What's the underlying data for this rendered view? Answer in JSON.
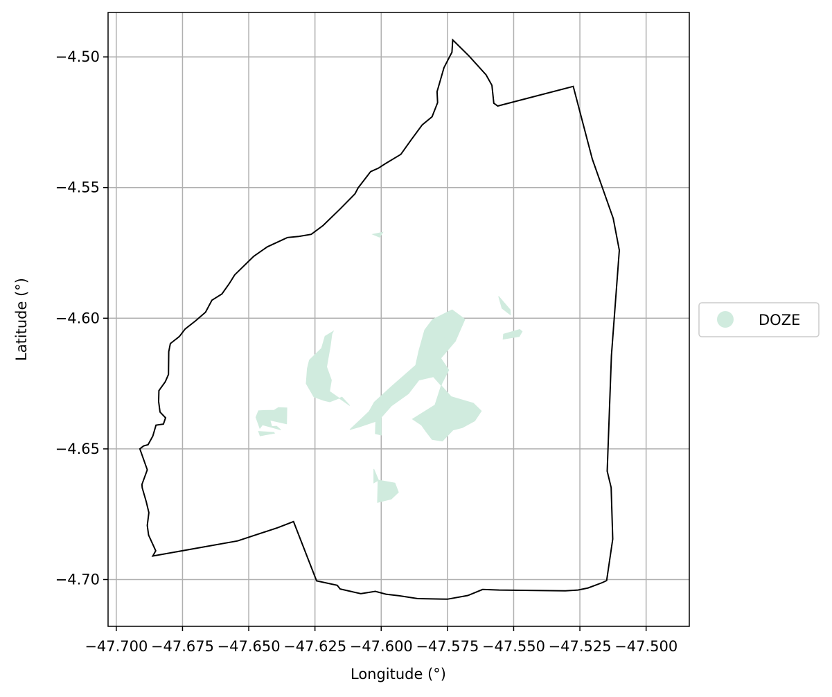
{
  "chart_data": {
    "type": "map",
    "xlabel": "Longitude (°)",
    "ylabel": "Latitude (°)",
    "xlim": [
      -47.7031,
      -47.4837
    ],
    "ylim": [
      -4.7179,
      -4.483
    ],
    "grid": true,
    "xticks": [
      -47.7,
      -47.675,
      -47.65,
      -47.625,
      -47.6,
      -47.575,
      -47.55,
      -47.525,
      -47.5
    ],
    "xtick_labels": [
      "−47.700",
      "−47.675",
      "−47.650",
      "−47.625",
      "−47.600",
      "−47.575",
      "−47.550",
      "−47.525",
      "−47.500"
    ],
    "yticks": [
      -4.5,
      -4.55,
      -4.6,
      -4.65,
      -4.7
    ],
    "ytick_labels": [
      "−4.50",
      "−4.55",
      "−4.60",
      "−4.65",
      "−4.70"
    ],
    "legend": {
      "placement": "right",
      "entries": [
        {
          "label": "DOZE",
          "color": "#d0ebde"
        }
      ]
    },
    "boundary": {
      "color": "#000000",
      "coords": [
        [
          -47.573,
          -4.4935
        ],
        [
          -47.5722,
          -4.4943
        ],
        [
          -47.5669,
          -4.4996
        ],
        [
          -47.5604,
          -4.5069
        ],
        [
          -47.5582,
          -4.5109
        ],
        [
          -47.5575,
          -4.5177
        ],
        [
          -47.556,
          -4.5188
        ],
        [
          -47.5275,
          -4.5113
        ],
        [
          -47.5203,
          -4.5391
        ],
        [
          -47.5124,
          -4.5618
        ],
        [
          -47.5101,
          -4.574
        ],
        [
          -47.5131,
          -4.6143
        ],
        [
          -47.5147,
          -4.6585
        ],
        [
          -47.5132,
          -4.6648
        ],
        [
          -47.5126,
          -4.6845
        ],
        [
          -47.5149,
          -4.7004
        ],
        [
          -47.5166,
          -4.7012
        ],
        [
          -47.5219,
          -4.7032
        ],
        [
          -47.5257,
          -4.704
        ],
        [
          -47.5305,
          -4.7043
        ],
        [
          -47.5555,
          -4.704
        ],
        [
          -47.5617,
          -4.7038
        ],
        [
          -47.5673,
          -4.7061
        ],
        [
          -47.575,
          -4.7075
        ],
        [
          -47.5862,
          -4.7073
        ],
        [
          -47.5932,
          -4.7062
        ],
        [
          -47.5982,
          -4.7056
        ],
        [
          -47.6022,
          -4.7045
        ],
        [
          -47.6077,
          -4.7054
        ],
        [
          -47.6155,
          -4.7036
        ],
        [
          -47.6166,
          -4.7022
        ],
        [
          -47.6244,
          -4.7005
        ],
        [
          -47.6331,
          -4.6778
        ],
        [
          -47.6392,
          -4.6802
        ],
        [
          -47.6542,
          -4.6852
        ],
        [
          -47.6862,
          -4.691
        ],
        [
          -47.6851,
          -4.689
        ],
        [
          -47.6865,
          -4.6859
        ],
        [
          -47.6878,
          -4.683
        ],
        [
          -47.6883,
          -4.6793
        ],
        [
          -47.6877,
          -4.6744
        ],
        [
          -47.6887,
          -4.6702
        ],
        [
          -47.6902,
          -4.6649
        ],
        [
          -47.6903,
          -4.6636
        ],
        [
          -47.6883,
          -4.658
        ],
        [
          -47.6911,
          -4.65
        ],
        [
          -47.6897,
          -4.6489
        ],
        [
          -47.688,
          -4.6484
        ],
        [
          -47.6862,
          -4.6451
        ],
        [
          -47.685,
          -4.6409
        ],
        [
          -47.6822,
          -4.6405
        ],
        [
          -47.6814,
          -4.6381
        ],
        [
          -47.6835,
          -4.6359
        ],
        [
          -47.684,
          -4.6319
        ],
        [
          -47.6839,
          -4.6277
        ],
        [
          -47.6815,
          -4.6243
        ],
        [
          -47.6803,
          -4.6215
        ],
        [
          -47.6802,
          -4.6128
        ],
        [
          -47.6796,
          -4.6097
        ],
        [
          -47.6762,
          -4.607
        ],
        [
          -47.674,
          -4.6041
        ],
        [
          -47.6701,
          -4.601
        ],
        [
          -47.6663,
          -4.5977
        ],
        [
          -47.6639,
          -4.5931
        ],
        [
          -47.6601,
          -4.5907
        ],
        [
          -47.6573,
          -4.5867
        ],
        [
          -47.6553,
          -4.5834
        ],
        [
          -47.6481,
          -4.5763
        ],
        [
          -47.643,
          -4.5727
        ],
        [
          -47.6354,
          -4.5691
        ],
        [
          -47.6311,
          -4.5687
        ],
        [
          -47.6264,
          -4.5679
        ],
        [
          -47.6219,
          -4.5645
        ],
        [
          -47.6155,
          -4.5582
        ],
        [
          -47.6099,
          -4.5524
        ],
        [
          -47.6087,
          -4.5501
        ],
        [
          -47.604,
          -4.5439
        ],
        [
          -47.6011,
          -4.5426
        ],
        [
          -47.5985,
          -4.5409
        ],
        [
          -47.5926,
          -4.5373
        ],
        [
          -47.5888,
          -4.5319
        ],
        [
          -47.5845,
          -4.526
        ],
        [
          -47.5808,
          -4.5229
        ],
        [
          -47.5787,
          -4.5175
        ],
        [
          -47.5789,
          -4.5133
        ],
        [
          -47.5763,
          -4.5041
        ],
        [
          -47.5733,
          -4.4982
        ],
        [
          -47.573,
          -4.4935
        ]
      ]
    },
    "doze_regions": [
      {
        "name": "west-strip",
        "coords": [
          [
            -47.6439,
            -4.6353
          ],
          [
            -47.6404,
            -4.6352
          ],
          [
            -47.6388,
            -4.6342
          ],
          [
            -47.6356,
            -4.6343
          ],
          [
            -47.6357,
            -4.6404
          ],
          [
            -47.642,
            -4.639
          ],
          [
            -47.6413,
            -4.6414
          ],
          [
            -47.6395,
            -4.6413
          ],
          [
            -47.6379,
            -4.6427
          ],
          [
            -47.6448,
            -4.6408
          ],
          [
            -47.6458,
            -4.6421
          ],
          [
            -47.6473,
            -4.6379
          ],
          [
            -47.6463,
            -4.6354
          ]
        ]
      },
      {
        "name": "west-strip-lower",
        "coords": [
          [
            -47.6463,
            -4.6433
          ],
          [
            -47.6405,
            -4.6437
          ],
          [
            -47.6403,
            -4.644
          ],
          [
            -47.6457,
            -4.645
          ]
        ]
      },
      {
        "name": "central-wedge",
        "coords": [
          [
            -47.6181,
            -4.605
          ],
          [
            -47.6212,
            -4.6069
          ],
          [
            -47.6225,
            -4.6115
          ],
          [
            -47.6271,
            -4.616
          ],
          [
            -47.6279,
            -4.6193
          ],
          [
            -47.6283,
            -4.625
          ],
          [
            -47.6254,
            -4.6301
          ],
          [
            -47.6215,
            -4.6315
          ],
          [
            -47.6194,
            -4.632
          ],
          [
            -47.6148,
            -4.6302
          ],
          [
            -47.6119,
            -4.6334
          ],
          [
            -47.6195,
            -4.628
          ],
          [
            -47.6188,
            -4.6237
          ],
          [
            -47.6206,
            -4.6186
          ],
          [
            -47.6192,
            -4.6106
          ],
          [
            -47.6186,
            -4.606
          ]
        ]
      },
      {
        "name": "center-large",
        "coords": [
          [
            -47.5741,
            -4.5972
          ],
          [
            -47.5806,
            -4.6005
          ],
          [
            -47.5836,
            -4.6045
          ],
          [
            -47.5858,
            -4.6125
          ],
          [
            -47.587,
            -4.618
          ],
          [
            -47.596,
            -4.626
          ],
          [
            -47.6026,
            -4.6321
          ],
          [
            -47.6046,
            -4.6357
          ],
          [
            -47.6118,
            -4.6426
          ],
          [
            -47.6082,
            -4.6416
          ],
          [
            -47.601,
            -4.6391
          ],
          [
            -47.5962,
            -4.6336
          ],
          [
            -47.5897,
            -4.6289
          ],
          [
            -47.5858,
            -4.6237
          ],
          [
            -47.5803,
            -4.6224
          ],
          [
            -47.5736,
            -4.63
          ],
          [
            -47.5652,
            -4.6325
          ],
          [
            -47.5622,
            -4.6355
          ],
          [
            -47.5647,
            -4.6393
          ],
          [
            -47.5694,
            -4.6419
          ],
          [
            -47.5729,
            -4.6428
          ],
          [
            -47.5769,
            -4.647
          ],
          [
            -47.5808,
            -4.6464
          ],
          [
            -47.5832,
            -4.6432
          ],
          [
            -47.5848,
            -4.6409
          ],
          [
            -47.5882,
            -4.6386
          ],
          [
            -47.5797,
            -4.6332
          ],
          [
            -47.5771,
            -4.625
          ],
          [
            -47.5745,
            -4.6198
          ],
          [
            -47.5775,
            -4.6153
          ],
          [
            -47.572,
            -4.6088
          ],
          [
            -47.5684,
            -4.6004
          ],
          [
            -47.5732,
            -4.5968
          ]
        ]
      },
      {
        "name": "center-stem",
        "coords": [
          [
            -47.6,
            -4.6375
          ],
          [
            -47.6,
            -4.6447
          ],
          [
            -47.6022,
            -4.6442
          ],
          [
            -47.602,
            -4.6375
          ]
        ]
      },
      {
        "name": "south-blob",
        "coords": [
          [
            -47.5948,
            -4.6631
          ],
          [
            -47.6012,
            -4.6619
          ],
          [
            -47.6014,
            -4.6705
          ],
          [
            -47.5962,
            -4.6692
          ],
          [
            -47.5935,
            -4.6666
          ]
        ]
      },
      {
        "name": "south-blob-stem",
        "coords": [
          [
            -47.6028,
            -4.6577
          ],
          [
            -47.6028,
            -4.663
          ],
          [
            -47.601,
            -4.662
          ]
        ]
      },
      {
        "name": "top-speck",
        "coords": [
          [
            -47.5994,
            -4.5671
          ],
          [
            -47.6032,
            -4.5679
          ],
          [
            -47.6006,
            -4.569
          ]
        ]
      },
      {
        "name": "east-hook",
        "coords": [
          [
            -47.5557,
            -4.5916
          ],
          [
            -47.5513,
            -4.5968
          ],
          [
            -47.5512,
            -4.5987
          ],
          [
            -47.5544,
            -4.5962
          ]
        ]
      },
      {
        "name": "east-patch",
        "coords": [
          [
            -47.5477,
            -4.6043
          ],
          [
            -47.5538,
            -4.6061
          ],
          [
            -47.554,
            -4.608
          ],
          [
            -47.5479,
            -4.607
          ],
          [
            -47.5468,
            -4.6051
          ]
        ]
      },
      {
        "name": "east-dots",
        "coords": [
          [
            -47.5778,
            -4.6079
          ],
          [
            -47.5749,
            -4.6075
          ],
          [
            -47.5748,
            -4.609
          ],
          [
            -47.5776,
            -4.6088
          ]
        ]
      },
      {
        "name": "south-right-speck",
        "coords": [
          [
            -47.5825,
            -4.6363
          ],
          [
            -47.578,
            -4.6374
          ],
          [
            -47.5763,
            -4.6387
          ]
        ]
      }
    ]
  }
}
